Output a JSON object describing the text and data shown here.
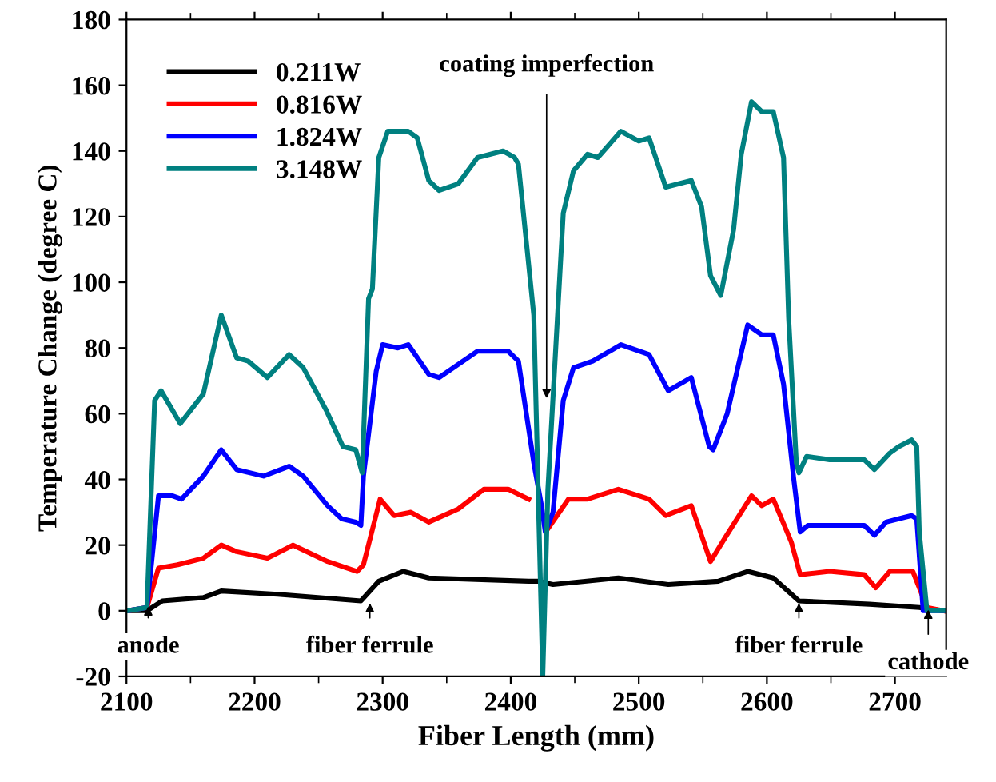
{
  "chart_data": {
    "type": "line",
    "xlabel": "Fiber Length (mm)",
    "ylabel": "Temperature Change (degree C)",
    "xlim": [
      2100,
      2740
    ],
    "ylim": [
      -20,
      180
    ],
    "xticks": [
      2100,
      2200,
      2300,
      2400,
      2500,
      2600,
      2700
    ],
    "yticks": [
      -20,
      0,
      20,
      40,
      60,
      80,
      100,
      120,
      140,
      160,
      180
    ],
    "grid": false,
    "legend": "top left",
    "line_style": "solid",
    "marker": "none",
    "series": [
      {
        "name": "0.211W",
        "color": "#000000",
        "x": [
          2101,
          2116,
          2128,
          2160,
          2174,
          2218,
          2283,
          2297,
          2316,
          2336,
          2414,
          2421,
          2433,
          2484,
          2523,
          2562,
          2585,
          2605,
          2625,
          2680,
          2719,
          2738
        ],
        "values": [
          0,
          0,
          3,
          4,
          6,
          5,
          3,
          9,
          12,
          10,
          9,
          9,
          8,
          10,
          8,
          9,
          12,
          10,
          3,
          2,
          1,
          0
        ]
      },
      {
        "name": "0.816W",
        "color": "#ff0000",
        "x": [
          2101,
          2116,
          2125,
          2140,
          2160,
          2174,
          2186,
          2210,
          2230,
          2257,
          2280,
          2285,
          2298,
          2309,
          2322,
          2336,
          2359,
          2379,
          2398,
          2414,
          2426,
          2429,
          2445,
          2460,
          2484,
          2508,
          2521,
          2541,
          2556,
          2567,
          2588,
          2596,
          2605,
          2619,
          2626,
          2649,
          2676,
          2685,
          2696,
          2714,
          2725,
          2738
        ],
        "values": [
          0,
          1,
          13,
          14,
          16,
          20,
          18,
          16,
          20,
          15,
          12,
          14,
          34,
          29,
          30,
          27,
          31,
          37,
          37,
          34,
          null,
          25,
          34,
          34,
          37,
          34,
          29,
          32,
          15,
          22,
          35,
          32,
          34,
          21,
          11,
          12,
          11,
          7,
          12,
          12,
          1,
          0
        ]
      },
      {
        "name": "1.824W",
        "color": "#0000ff",
        "x": [
          2101,
          2116,
          2125,
          2136,
          2143,
          2160,
          2174,
          2186,
          2207,
          2227,
          2238,
          2257,
          2268,
          2279,
          2283,
          2285,
          2295,
          2300,
          2312,
          2320,
          2336,
          2344,
          2359,
          2374,
          2398,
          2406,
          2418,
          2424,
          2427,
          2433,
          2441,
          2449,
          2464,
          2486,
          2508,
          2523,
          2541,
          2555,
          2558,
          2569,
          2585,
          2596,
          2605,
          2613,
          2621,
          2626,
          2632,
          2649,
          2676,
          2684,
          2693,
          2703,
          2713,
          2717,
          2722,
          2738
        ],
        "values": [
          0,
          1,
          35,
          35,
          34,
          41,
          49,
          43,
          41,
          44,
          41,
          32,
          28,
          27,
          26,
          41,
          73,
          81,
          80,
          81,
          72,
          71,
          75,
          79,
          79,
          76,
          45,
          32,
          24,
          30,
          64,
          74,
          76,
          81,
          78,
          67,
          71,
          50,
          49,
          60,
          87,
          84,
          84,
          69,
          40,
          24,
          26,
          26,
          26,
          23,
          27,
          28,
          29,
          28,
          0,
          0
        ]
      },
      {
        "name": "3.148W",
        "color": "#008080",
        "x": [
          2101,
          2116,
          2122,
          2127,
          2142,
          2160,
          2174,
          2186,
          2195,
          2210,
          2227,
          2238,
          2256,
          2269,
          2279,
          2284,
          2289,
          2292,
          2297,
          2304,
          2320,
          2327,
          2336,
          2344,
          2359,
          2374,
          2394,
          2403,
          2406,
          2418,
          2425,
          2429,
          2441,
          2449,
          2460,
          2468,
          2486,
          2500,
          2508,
          2521,
          2541,
          2549,
          2556,
          2564,
          2574,
          2580,
          2588,
          2596,
          2605,
          2613,
          2617,
          2623,
          2625,
          2631,
          2649,
          2676,
          2684,
          2696,
          2703,
          2713,
          2717,
          2719,
          2725,
          2738
        ],
        "values": [
          0,
          1,
          64,
          67,
          57,
          66,
          90,
          77,
          76,
          71,
          78,
          74,
          61,
          50,
          49,
          42,
          95,
          98,
          138,
          146,
          146,
          144,
          131,
          128,
          130,
          138,
          140,
          138,
          136,
          90,
          -20,
          37,
          121,
          134,
          139,
          138,
          146,
          143,
          144,
          129,
          131,
          123,
          102,
          96,
          116,
          139,
          155,
          152,
          152,
          138,
          89,
          45,
          42,
          47,
          46,
          46,
          43,
          48,
          50,
          52,
          50,
          24,
          0,
          0
        ]
      }
    ],
    "annotations": [
      {
        "text": "anode",
        "x": 2117,
        "y": 2
      },
      {
        "text": "fiber ferrule",
        "x": 2290,
        "y": 3
      },
      {
        "text": "coating imperfection",
        "x": 2428,
        "y": 64
      },
      {
        "text": "fiber ferrule",
        "x": 2625,
        "y": 3
      },
      {
        "text": "cathode",
        "x": 2726,
        "y": 1
      }
    ]
  }
}
